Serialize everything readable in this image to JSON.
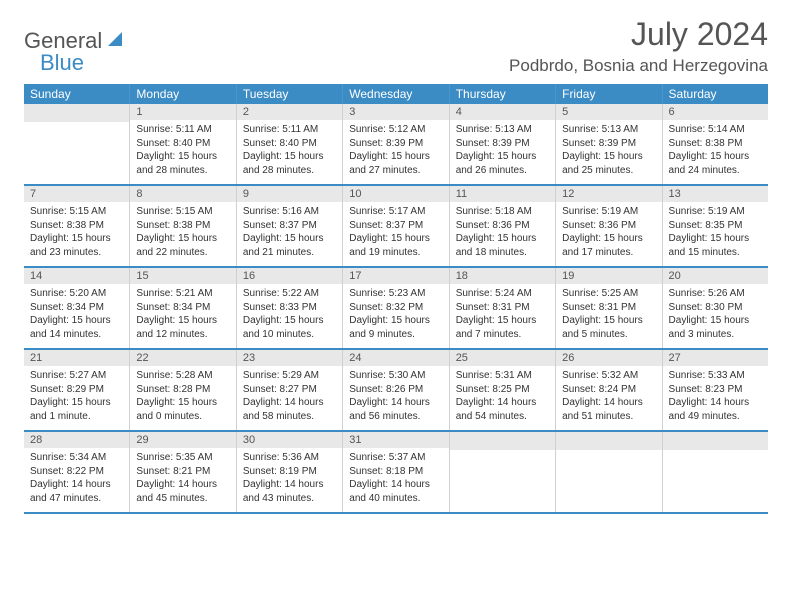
{
  "brand": {
    "textDark": "General",
    "textBlue": "Blue"
  },
  "title": "July 2024",
  "location": "Podbrdo, Bosnia and Herzegovina",
  "colors": {
    "header_bg": "#3b8bc4",
    "header_text": "#ffffff",
    "daynum_bg": "#e8e8e8",
    "text": "#333333",
    "title_text": "#555555",
    "border": "#d0d0d0"
  },
  "weekdays": [
    "Sunday",
    "Monday",
    "Tuesday",
    "Wednesday",
    "Thursday",
    "Friday",
    "Saturday"
  ],
  "firstDayOffset": 1,
  "days": [
    {
      "n": 1,
      "sunrise": "5:11 AM",
      "sunset": "8:40 PM",
      "daylight": "15 hours and 28 minutes."
    },
    {
      "n": 2,
      "sunrise": "5:11 AM",
      "sunset": "8:40 PM",
      "daylight": "15 hours and 28 minutes."
    },
    {
      "n": 3,
      "sunrise": "5:12 AM",
      "sunset": "8:39 PM",
      "daylight": "15 hours and 27 minutes."
    },
    {
      "n": 4,
      "sunrise": "5:13 AM",
      "sunset": "8:39 PM",
      "daylight": "15 hours and 26 minutes."
    },
    {
      "n": 5,
      "sunrise": "5:13 AM",
      "sunset": "8:39 PM",
      "daylight": "15 hours and 25 minutes."
    },
    {
      "n": 6,
      "sunrise": "5:14 AM",
      "sunset": "8:38 PM",
      "daylight": "15 hours and 24 minutes."
    },
    {
      "n": 7,
      "sunrise": "5:15 AM",
      "sunset": "8:38 PM",
      "daylight": "15 hours and 23 minutes."
    },
    {
      "n": 8,
      "sunrise": "5:15 AM",
      "sunset": "8:38 PM",
      "daylight": "15 hours and 22 minutes."
    },
    {
      "n": 9,
      "sunrise": "5:16 AM",
      "sunset": "8:37 PM",
      "daylight": "15 hours and 21 minutes."
    },
    {
      "n": 10,
      "sunrise": "5:17 AM",
      "sunset": "8:37 PM",
      "daylight": "15 hours and 19 minutes."
    },
    {
      "n": 11,
      "sunrise": "5:18 AM",
      "sunset": "8:36 PM",
      "daylight": "15 hours and 18 minutes."
    },
    {
      "n": 12,
      "sunrise": "5:19 AM",
      "sunset": "8:36 PM",
      "daylight": "15 hours and 17 minutes."
    },
    {
      "n": 13,
      "sunrise": "5:19 AM",
      "sunset": "8:35 PM",
      "daylight": "15 hours and 15 minutes."
    },
    {
      "n": 14,
      "sunrise": "5:20 AM",
      "sunset": "8:34 PM",
      "daylight": "15 hours and 14 minutes."
    },
    {
      "n": 15,
      "sunrise": "5:21 AM",
      "sunset": "8:34 PM",
      "daylight": "15 hours and 12 minutes."
    },
    {
      "n": 16,
      "sunrise": "5:22 AM",
      "sunset": "8:33 PM",
      "daylight": "15 hours and 10 minutes."
    },
    {
      "n": 17,
      "sunrise": "5:23 AM",
      "sunset": "8:32 PM",
      "daylight": "15 hours and 9 minutes."
    },
    {
      "n": 18,
      "sunrise": "5:24 AM",
      "sunset": "8:31 PM",
      "daylight": "15 hours and 7 minutes."
    },
    {
      "n": 19,
      "sunrise": "5:25 AM",
      "sunset": "8:31 PM",
      "daylight": "15 hours and 5 minutes."
    },
    {
      "n": 20,
      "sunrise": "5:26 AM",
      "sunset": "8:30 PM",
      "daylight": "15 hours and 3 minutes."
    },
    {
      "n": 21,
      "sunrise": "5:27 AM",
      "sunset": "8:29 PM",
      "daylight": "15 hours and 1 minute."
    },
    {
      "n": 22,
      "sunrise": "5:28 AM",
      "sunset": "8:28 PM",
      "daylight": "15 hours and 0 minutes."
    },
    {
      "n": 23,
      "sunrise": "5:29 AM",
      "sunset": "8:27 PM",
      "daylight": "14 hours and 58 minutes."
    },
    {
      "n": 24,
      "sunrise": "5:30 AM",
      "sunset": "8:26 PM",
      "daylight": "14 hours and 56 minutes."
    },
    {
      "n": 25,
      "sunrise": "5:31 AM",
      "sunset": "8:25 PM",
      "daylight": "14 hours and 54 minutes."
    },
    {
      "n": 26,
      "sunrise": "5:32 AM",
      "sunset": "8:24 PM",
      "daylight": "14 hours and 51 minutes."
    },
    {
      "n": 27,
      "sunrise": "5:33 AM",
      "sunset": "8:23 PM",
      "daylight": "14 hours and 49 minutes."
    },
    {
      "n": 28,
      "sunrise": "5:34 AM",
      "sunset": "8:22 PM",
      "daylight": "14 hours and 47 minutes."
    },
    {
      "n": 29,
      "sunrise": "5:35 AM",
      "sunset": "8:21 PM",
      "daylight": "14 hours and 45 minutes."
    },
    {
      "n": 30,
      "sunrise": "5:36 AM",
      "sunset": "8:19 PM",
      "daylight": "14 hours and 43 minutes."
    },
    {
      "n": 31,
      "sunrise": "5:37 AM",
      "sunset": "8:18 PM",
      "daylight": "14 hours and 40 minutes."
    }
  ],
  "labels": {
    "sunrise": "Sunrise: ",
    "sunset": "Sunset: ",
    "daylight": "Daylight: "
  }
}
